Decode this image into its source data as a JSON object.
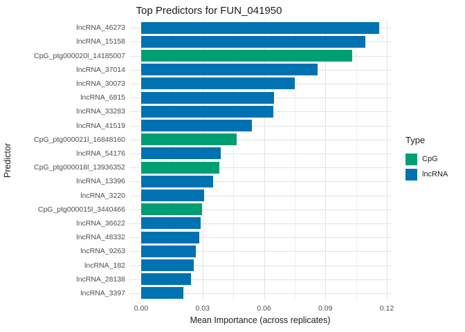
{
  "title": "Top Predictors for FUN_041950",
  "axes": {
    "x_label": "Mean Importance (across replicates)",
    "y_label": "Predictor"
  },
  "legend": {
    "title": "Type",
    "items": [
      {
        "label": "CpG",
        "color": "#009E73"
      },
      {
        "label": "lncRNA",
        "color": "#0072B2"
      }
    ]
  },
  "chart_data": {
    "type": "bar",
    "orientation": "horizontal",
    "title": "Top Predictors for FUN_041950",
    "xlabel": "Mean Importance (across replicates)",
    "ylabel": "Predictor",
    "categories": [
      "lncRNA_46273",
      "lncRNA_15158",
      "CpG_ptg000020l_14185007",
      "lncRNA_37014",
      "lncRNA_30073",
      "lncRNA_6815",
      "lncRNA_33283",
      "lncRNA_41519",
      "CpG_ptg000021l_16848160",
      "lncRNA_54176",
      "CpG_ptg000018l_13936352",
      "lncRNA_13396",
      "lncRNA_3220",
      "CpG_ptg000015l_3440466",
      "lncRNA_36622",
      "lncRNA_48332",
      "lncRNA_9263",
      "lncRNA_182",
      "lncRNA_28138",
      "lncRNA_3397"
    ],
    "values": [
      0.1163,
      0.1095,
      0.1031,
      0.0862,
      0.075,
      0.0649,
      0.0646,
      0.0541,
      0.0467,
      0.0389,
      0.0382,
      0.0352,
      0.0308,
      0.0297,
      0.0291,
      0.0284,
      0.0267,
      0.0257,
      0.0243,
      0.0206
    ],
    "bar_types": [
      "lncRNA",
      "lncRNA",
      "CpG",
      "lncRNA",
      "lncRNA",
      "lncRNA",
      "lncRNA",
      "lncRNA",
      "CpG",
      "lncRNA",
      "CpG",
      "lncRNA",
      "lncRNA",
      "CpG",
      "lncRNA",
      "lncRNA",
      "lncRNA",
      "lncRNA",
      "lncRNA",
      "lncRNA"
    ],
    "colors": {
      "CpG": "#009E73",
      "lncRNA": "#0072B2"
    },
    "xlim": [
      0,
      0.1221
    ],
    "x_ticks": [
      {
        "label": "0.00",
        "value": 0.0
      },
      {
        "label": "0.03",
        "value": 0.03
      },
      {
        "label": "0.06",
        "value": 0.06
      },
      {
        "label": "0.09",
        "value": 0.09
      },
      {
        "label": "0.12",
        "value": 0.12
      }
    ],
    "x_minor_ticks": [
      0.015,
      0.045,
      0.075,
      0.105
    ],
    "grid": true,
    "legend_position": "right"
  }
}
